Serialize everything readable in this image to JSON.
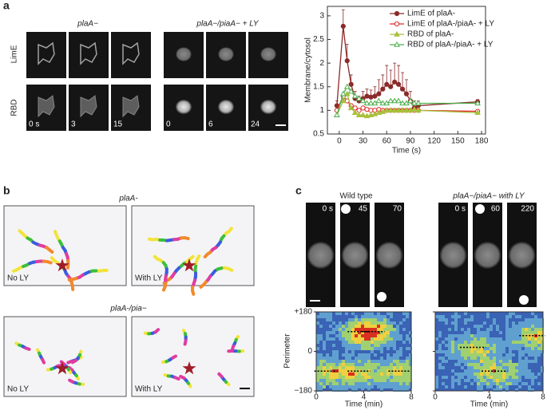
{
  "panel_a": {
    "label": "a",
    "rows": [
      "LimE",
      "RBD"
    ],
    "groups": [
      {
        "title": "plaA−",
        "frames": [
          "0 s",
          "3",
          "15"
        ]
      },
      {
        "title": "plaA−/piaA− + LY",
        "frames": [
          "0",
          "6",
          "24"
        ]
      }
    ]
  },
  "chart_data": {
    "type": "line",
    "x_label": "Time (s)",
    "y_label": "Membrane/cytosol",
    "x": [
      -3,
      5,
      10,
      15,
      20,
      25,
      30,
      35,
      40,
      45,
      50,
      55,
      60,
      65,
      70,
      75,
      80,
      85,
      90,
      95,
      100,
      175
    ],
    "xlim": [
      -15,
      185
    ],
    "xticks": [
      0,
      30,
      60,
      90,
      120,
      150,
      180
    ],
    "ylim": [
      0.5,
      3.2
    ],
    "yticks": [
      0.5,
      1,
      1.5,
      2,
      2.5,
      3
    ],
    "legend": "upper right",
    "series": [
      {
        "name": "LimE of plaA-",
        "color": "#8b2a2a",
        "marker": "circle",
        "values": [
          1.1,
          2.78,
          2.05,
          1.55,
          1.25,
          1.2,
          1.25,
          1.3,
          1.28,
          1.3,
          1.35,
          1.45,
          1.55,
          1.5,
          1.6,
          1.55,
          1.45,
          1.35,
          1.2,
          1.05,
          1.1,
          1.18
        ],
        "errors": [
          0.1,
          0.35,
          0.35,
          0.2,
          0.15,
          0.1,
          0.15,
          0.15,
          0.15,
          0.2,
          0.3,
          0.3,
          0.4,
          0.35,
          0.4,
          0.4,
          0.35,
          0.3,
          0.2,
          0.15,
          0.1,
          0.05
        ]
      },
      {
        "name": "LimE of plaA-/piaA- + LY",
        "color": "#e02828",
        "marker": "circle-open",
        "values": [
          1.0,
          1.3,
          1.2,
          1.1,
          1.05,
          1.0,
          1.05,
          1.02,
          1.0,
          1.0,
          1.02,
          1.0,
          1.0,
          1.0,
          1.0,
          1.0,
          1.0,
          1.0,
          1.0,
          1.0,
          1.0,
          0.98
        ]
      },
      {
        "name": "RBD of plaA-",
        "color": "#a8c03c",
        "marker": "triangle",
        "values": [
          0.9,
          1.2,
          1.35,
          1.05,
          0.95,
          0.9,
          0.9,
          0.88,
          0.9,
          0.92,
          0.95,
          0.97,
          1.0,
          1.0,
          1.0,
          1.0,
          1.0,
          1.0,
          1.0,
          1.02,
          1.0,
          0.95
        ]
      },
      {
        "name": "RBD of plaA-/piaA- + LY",
        "color": "#4cae4c",
        "marker": "triangle-open",
        "values": [
          0.9,
          1.35,
          1.5,
          1.4,
          1.3,
          1.25,
          1.2,
          1.15,
          1.15,
          1.15,
          1.2,
          1.15,
          1.15,
          1.2,
          1.2,
          1.2,
          1.15,
          1.15,
          1.2,
          1.15,
          1.15,
          1.15
        ]
      }
    ]
  },
  "panel_b": {
    "label": "b",
    "groups": [
      {
        "title": "plaA-",
        "plots": [
          "No LY",
          "With LY"
        ]
      },
      {
        "title": "plaA-/pia−",
        "plots": [
          "No LY",
          "With LY"
        ]
      }
    ]
  },
  "panel_c": {
    "label": "c",
    "groups": [
      {
        "title": "Wild type",
        "frames": [
          "0 s",
          "45",
          "70"
        ]
      },
      {
        "title": "plaA−/piaA− with LY",
        "frames": [
          "0 s",
          "60",
          "220"
        ]
      }
    ],
    "heatmap": {
      "y_label": "Perimeter",
      "x_label": "Time (min)",
      "ylim": [
        -180,
        180
      ],
      "yticks": [
        {
          "value": 180,
          "label": "+180"
        },
        0,
        {
          "value": -180,
          "label": "−180"
        }
      ],
      "xlim": [
        0,
        8
      ],
      "xticks": [
        0,
        4,
        8
      ]
    }
  }
}
